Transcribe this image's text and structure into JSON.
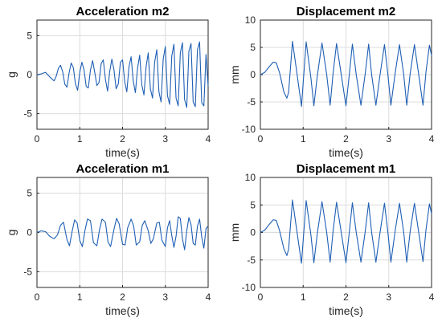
{
  "colors": {
    "series": "#1f5fb4",
    "grid": "#dcdcdc",
    "axis": "#262626"
  },
  "chart_data": [
    {
      "type": "line",
      "title": "Acceleration m2",
      "xlabel": "time(s)",
      "ylabel": "g",
      "xlim": [
        0,
        4
      ],
      "ylim": [
        -7,
        7
      ],
      "xticks": [
        "0",
        "1",
        "2",
        "3",
        "4"
      ],
      "yticks": [
        "5",
        "0",
        "-5"
      ],
      "grid": true,
      "series": [
        {
          "x": [
            0,
            0.1,
            0.2,
            0.3,
            0.4,
            0.45,
            0.5,
            0.55,
            0.6,
            0.65,
            0.7,
            0.75,
            0.8,
            0.85,
            0.9,
            0.95,
            1.0,
            1.05,
            1.1,
            1.15,
            1.2,
            1.25,
            1.3,
            1.35,
            1.4,
            1.45,
            1.5,
            1.55,
            1.6,
            1.65,
            1.7,
            1.75,
            1.8,
            1.85,
            1.9,
            1.95,
            2.0,
            2.05,
            2.1,
            2.15,
            2.2,
            2.25,
            2.3,
            2.35,
            2.4,
            2.45,
            2.5,
            2.55,
            2.6,
            2.65,
            2.7,
            2.75,
            2.8,
            2.85,
            2.9,
            2.95,
            3.0,
            3.05,
            3.1,
            3.15,
            3.2,
            3.25,
            3.3,
            3.35,
            3.4,
            3.45,
            3.5,
            3.55,
            3.6,
            3.65,
            3.7,
            3.75,
            3.8,
            3.85,
            3.9,
            3.95,
            4.0
          ],
          "y": [
            0,
            0.1,
            0.3,
            -0.3,
            -0.8,
            -0.2,
            0.8,
            1.2,
            0.4,
            -1.2,
            -1.6,
            0.2,
            1.5,
            0.9,
            -1.2,
            -2.0,
            0.3,
            1.6,
            0.6,
            -1.5,
            -1.7,
            0.6,
            1.8,
            0.3,
            -1.4,
            -1.0,
            1.4,
            1.9,
            -0.6,
            -2.1,
            0.4,
            2.0,
            0.6,
            -1.8,
            -1.2,
            1.6,
            1.9,
            -0.9,
            -2.2,
            1.0,
            2.3,
            -0.8,
            -2.3,
            0.8,
            2.5,
            -1.3,
            -2.6,
            1.0,
            2.8,
            -1.8,
            -3.0,
            1.6,
            3.2,
            -2.2,
            -3.5,
            2.0,
            3.6,
            -2.7,
            -3.8,
            2.4,
            3.9,
            -3.0,
            -4.0,
            2.8,
            4.1,
            -3.2,
            -4.2,
            3.0,
            4.0,
            -3.5,
            -4.1,
            3.2,
            4.2,
            -3.6,
            -4.0,
            2.6,
            -1.5
          ]
        }
      ]
    },
    {
      "type": "line",
      "title": "Displacement m2",
      "xlabel": "time(s)",
      "ylabel": "mm",
      "xlim": [
        0,
        4
      ],
      "ylim": [
        -10,
        10
      ],
      "xticks": [
        "0",
        "1",
        "2",
        "3",
        "4"
      ],
      "yticks": [
        "10",
        "5",
        "0",
        "-5",
        "-10"
      ],
      "grid": true,
      "series": [
        {
          "x": [
            0,
            0.1,
            0.2,
            0.3,
            0.37,
            0.45,
            0.55,
            0.62,
            0.66,
            0.75,
            0.85,
            0.96,
            1.07,
            1.18,
            1.25,
            1.33,
            1.44,
            1.55,
            1.63,
            1.7,
            1.78,
            1.89,
            2.0,
            2.08,
            2.15,
            2.24,
            2.35,
            2.45,
            2.53,
            2.6,
            2.7,
            2.8,
            2.9,
            2.98,
            3.05,
            3.15,
            3.25,
            3.35,
            3.42,
            3.5,
            3.6,
            3.7,
            3.8,
            3.87,
            3.95,
            4.0
          ],
          "y": [
            0,
            0.4,
            1.4,
            2.3,
            2.2,
            0.3,
            -3.2,
            -4.3,
            -3.2,
            6.1,
            0.5,
            -5.8,
            6.0,
            -0.5,
            -5.7,
            -0.2,
            5.8,
            0,
            -5.6,
            0.3,
            5.7,
            0,
            -5.7,
            0.2,
            5.6,
            0,
            -5.6,
            0.2,
            5.6,
            0,
            -5.6,
            0.2,
            5.5,
            0,
            -5.6,
            0.3,
            5.5,
            0,
            -5.6,
            0.2,
            5.5,
            0,
            -5.6,
            0.5,
            5.4,
            3.5
          ]
        }
      ]
    },
    {
      "type": "line",
      "title": "Acceleration m1",
      "xlabel": "time(s)",
      "ylabel": "g",
      "xlim": [
        0,
        4
      ],
      "ylim": [
        -7,
        7
      ],
      "xticks": [
        "0",
        "1",
        "2",
        "3",
        "4"
      ],
      "yticks": [
        "5",
        "0",
        "-5"
      ],
      "grid": true,
      "series": [
        {
          "x": [
            0,
            0.1,
            0.2,
            0.3,
            0.4,
            0.48,
            0.55,
            0.62,
            0.7,
            0.76,
            0.82,
            0.88,
            0.94,
            1.0,
            1.06,
            1.12,
            1.18,
            1.25,
            1.32,
            1.4,
            1.46,
            1.52,
            1.6,
            1.66,
            1.72,
            1.8,
            1.86,
            1.92,
            2.0,
            2.06,
            2.12,
            2.2,
            2.26,
            2.32,
            2.4,
            2.46,
            2.52,
            2.6,
            2.66,
            2.72,
            2.8,
            2.86,
            2.92,
            3.0,
            3.05,
            3.1,
            3.15,
            3.2,
            3.25,
            3.3,
            3.35,
            3.4,
            3.45,
            3.5,
            3.55,
            3.6,
            3.65,
            3.7,
            3.75,
            3.8,
            3.85,
            3.9,
            3.95,
            4.0
          ],
          "y": [
            0,
            0.2,
            0.1,
            -0.5,
            -0.8,
            -0.3,
            0.9,
            1.3,
            -0.9,
            -1.7,
            0.1,
            1.6,
            1.2,
            -1.0,
            -1.8,
            0.2,
            1.7,
            1.5,
            -1.3,
            -1.7,
            0.3,
            1.7,
            1.3,
            -1.2,
            -1.8,
            0.4,
            1.8,
            1.1,
            -1.5,
            -1.6,
            0.6,
            1.7,
            0.8,
            -1.6,
            -1.2,
            0.9,
            1.5,
            0.2,
            -1.4,
            -0.8,
            1.2,
            1.3,
            -1.0,
            -1.8,
            0.6,
            1.5,
            -0.4,
            -1.9,
            -0.5,
            2.0,
            1.8,
            -0.8,
            -2.2,
            0.2,
            1.9,
            1.0,
            -1.4,
            -1.6,
            0.8,
            1.7,
            -0.6,
            -2.0,
            0.5,
            0.8
          ]
        }
      ]
    },
    {
      "type": "line",
      "title": "Displacement m1",
      "xlabel": "time(s)",
      "ylabel": "mm",
      "xlim": [
        0,
        4
      ],
      "ylim": [
        -10,
        10
      ],
      "xticks": [
        "0",
        "1",
        "2",
        "3",
        "4"
      ],
      "yticks": [
        "10",
        "5",
        "0",
        "-5",
        "-10"
      ],
      "grid": true,
      "series": [
        {
          "x": [
            0,
            0.1,
            0.2,
            0.3,
            0.37,
            0.45,
            0.55,
            0.62,
            0.66,
            0.75,
            0.85,
            0.96,
            1.07,
            1.18,
            1.25,
            1.33,
            1.44,
            1.55,
            1.63,
            1.7,
            1.78,
            1.89,
            2.0,
            2.08,
            2.15,
            2.24,
            2.35,
            2.45,
            2.53,
            2.6,
            2.7,
            2.8,
            2.9,
            2.98,
            3.05,
            3.15,
            3.25,
            3.35,
            3.42,
            3.5,
            3.6,
            3.7,
            3.8,
            3.87,
            3.95,
            4.0
          ],
          "y": [
            0,
            0.4,
            1.4,
            2.3,
            2.2,
            0.3,
            -3.0,
            -4.2,
            -3.0,
            5.9,
            0.4,
            -5.6,
            5.8,
            -0.4,
            -5.5,
            -0.2,
            5.6,
            0,
            -5.4,
            0.3,
            5.5,
            0,
            -5.5,
            0.2,
            5.4,
            0,
            -5.4,
            0.2,
            5.4,
            0,
            -5.4,
            0.2,
            5.3,
            0,
            -5.4,
            0.3,
            5.3,
            0,
            -5.4,
            0.2,
            5.3,
            0,
            -5.3,
            0.5,
            5.2,
            3.4
          ]
        }
      ]
    }
  ]
}
